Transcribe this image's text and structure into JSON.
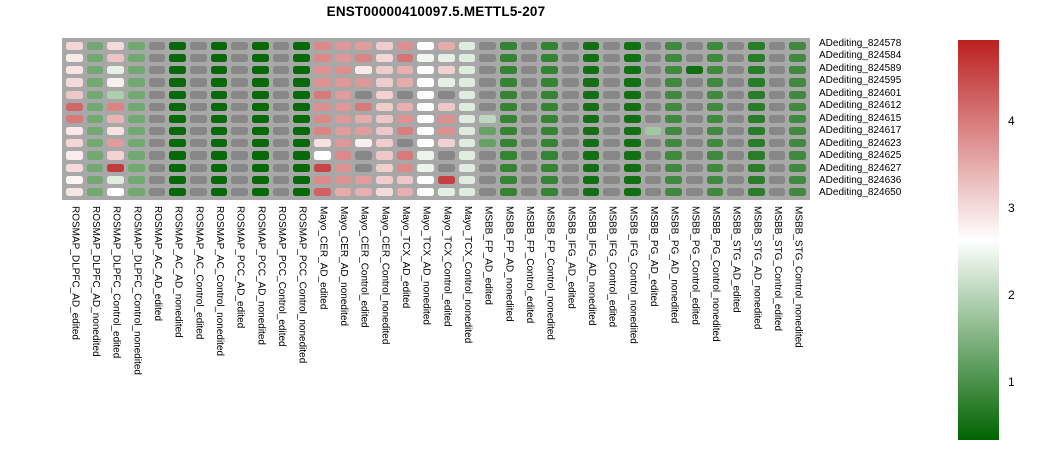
{
  "title": "ENST00000410097.5.METTL5-207",
  "chart_data": {
    "type": "heatmap",
    "rows": [
      "ADediting_824578",
      "ADediting_824584",
      "ADediting_824589",
      "ADediting_824595",
      "ADediting_824601",
      "ADediting_824612",
      "ADediting_824615",
      "ADediting_824617",
      "ADediting_824623",
      "ADediting_824625",
      "ADediting_824627",
      "ADediting_824636",
      "ADediting_824650"
    ],
    "columns": [
      "ROSMAP_DLPFC_AD_edited",
      "ROSMAP_DLPFC_AD_nonedited",
      "ROSMAP_DLPFC_Control_edited",
      "ROSMAP_DLPFC_Control_nonedited",
      "ROSMAP_AC_AD_edited",
      "ROSMAP_AC_AD_nonedited",
      "ROSMAP_AC_Control_edited",
      "ROSMAP_AC_Control_nonedited",
      "ROSMAP_PCC_AD_edited",
      "ROSMAP_PCC_AD_nonedited",
      "ROSMAP_PCC_Control_edited",
      "ROSMAP_PCC_Control_nonedited",
      "Mayo_CER_AD_edited",
      "Mayo_CER_AD_nonedited",
      "Mayo_CER_Control_edited",
      "Mayo_CER_Control_nonedited",
      "Mayo_TCX_AD_edited",
      "Mayo_TCX_AD_nonedited",
      "Mayo_TCX_Control_edited",
      "Mayo_TCX_Control_nonedited",
      "MSBB_FP_AD_edited",
      "MSBB_FP_AD_nonedited",
      "MSBB_FP_Control_edited",
      "MSBB_FP_Control_nonedited",
      "MSBB_IFG_AD_edited",
      "MSBB_IFG_AD_nonedited",
      "MSBB_IFG_Control_edited",
      "MSBB_IFG_Control_nonedited",
      "MSBB_PG_AD_edited",
      "MSBB_PG_AD_nonedited",
      "MSBB_PG_Control_edited",
      "MSBB_PG_Control_nonedited",
      "MSBB_STG_AD_edited",
      "MSBB_STG_AD_nonedited",
      "MSBB_STG_Control_edited",
      "MSBB_STG_Control_nonedited"
    ],
    "values": [
      [
        3.05,
        1.35,
        3.0,
        1.35,
        null,
        0.4,
        null,
        0.4,
        null,
        0.4,
        null,
        0.4,
        3.85,
        3.7,
        3.65,
        3.15,
        3.8,
        2.6,
        3.5,
        2.35,
        null,
        0.8,
        null,
        0.8,
        null,
        0.5,
        null,
        0.5,
        null,
        0.9,
        null,
        0.9,
        null,
        0.7,
        null,
        0.9
      ],
      [
        2.85,
        1.35,
        3.25,
        1.35,
        null,
        0.4,
        null,
        0.4,
        null,
        0.4,
        null,
        0.4,
        3.85,
        3.7,
        3.9,
        3.05,
        4.05,
        2.5,
        2.4,
        2.35,
        null,
        0.8,
        null,
        0.8,
        null,
        0.5,
        null,
        0.5,
        null,
        0.9,
        null,
        0.9,
        null,
        0.7,
        null,
        0.9
      ],
      [
        2.9,
        1.35,
        2.4,
        1.35,
        null,
        0.4,
        null,
        0.4,
        null,
        0.4,
        null,
        0.4,
        3.75,
        3.8,
        2.85,
        3.15,
        3.45,
        2.6,
        3.1,
        2.35,
        null,
        0.8,
        null,
        0.8,
        null,
        0.5,
        null,
        0.5,
        null,
        0.9,
        0.5,
        0.9,
        null,
        0.7,
        null,
        0.9
      ],
      [
        3.0,
        1.35,
        2.8,
        1.35,
        null,
        0.4,
        null,
        0.4,
        null,
        0.4,
        null,
        0.4,
        3.75,
        3.7,
        3.7,
        3.15,
        3.5,
        2.6,
        2.4,
        2.35,
        null,
        0.8,
        null,
        0.8,
        null,
        0.5,
        null,
        0.5,
        null,
        0.9,
        null,
        0.9,
        null,
        0.7,
        null,
        0.9
      ],
      [
        3.2,
        1.35,
        1.9,
        1.35,
        null,
        0.4,
        null,
        0.4,
        null,
        0.4,
        null,
        0.4,
        4.0,
        3.65,
        null,
        3.1,
        null,
        2.6,
        null,
        2.35,
        null,
        0.8,
        null,
        0.8,
        null,
        0.5,
        null,
        0.5,
        null,
        0.9,
        null,
        0.9,
        null,
        0.7,
        null,
        0.9
      ],
      [
        4.2,
        1.35,
        3.9,
        1.35,
        null,
        0.4,
        null,
        0.4,
        null,
        0.4,
        null,
        0.4,
        3.8,
        3.7,
        4.0,
        3.15,
        3.45,
        2.6,
        3.2,
        2.35,
        null,
        0.8,
        null,
        0.8,
        null,
        0.5,
        null,
        0.5,
        null,
        0.9,
        null,
        0.9,
        null,
        0.7,
        null,
        0.9
      ],
      [
        4.0,
        1.35,
        3.4,
        1.35,
        null,
        0.4,
        null,
        0.4,
        null,
        0.4,
        null,
        0.4,
        3.85,
        3.7,
        3.5,
        3.2,
        3.75,
        2.6,
        3.78,
        2.35,
        2.05,
        0.8,
        null,
        0.8,
        null,
        0.5,
        null,
        0.5,
        null,
        0.9,
        null,
        0.9,
        null,
        0.7,
        null,
        0.9
      ],
      [
        2.87,
        1.35,
        2.92,
        1.35,
        null,
        0.4,
        null,
        0.4,
        null,
        0.4,
        null,
        0.4,
        3.9,
        3.65,
        3.65,
        3.2,
        3.95,
        2.6,
        3.78,
        2.35,
        1.25,
        0.8,
        null,
        0.8,
        null,
        0.5,
        null,
        0.5,
        1.8,
        0.9,
        null,
        0.9,
        null,
        0.7,
        null,
        0.9
      ],
      [
        3.05,
        1.35,
        3.65,
        1.35,
        null,
        0.4,
        null,
        0.4,
        null,
        0.4,
        null,
        0.4,
        2.95,
        3.7,
        2.8,
        3.15,
        null,
        2.62,
        3.1,
        2.35,
        1.25,
        0.8,
        null,
        0.8,
        null,
        0.5,
        null,
        0.5,
        null,
        0.9,
        null,
        0.9,
        null,
        0.7,
        null,
        0.9
      ],
      [
        2.83,
        1.35,
        3.1,
        1.35,
        null,
        0.4,
        null,
        0.4,
        null,
        0.4,
        null,
        0.4,
        2.63,
        3.85,
        null,
        3.2,
        4.0,
        2.45,
        null,
        2.35,
        null,
        0.8,
        null,
        0.8,
        null,
        0.5,
        null,
        0.5,
        null,
        0.9,
        null,
        0.9,
        null,
        0.7,
        null,
        0.9
      ],
      [
        3.02,
        1.35,
        4.65,
        1.35,
        null,
        0.4,
        null,
        0.4,
        null,
        0.4,
        null,
        0.4,
        4.55,
        3.75,
        null,
        3.12,
        3.85,
        2.45,
        null,
        2.35,
        null,
        0.8,
        null,
        0.8,
        null,
        0.5,
        null,
        0.5,
        null,
        0.9,
        null,
        0.9,
        null,
        0.7,
        null,
        0.9
      ],
      [
        2.75,
        1.35,
        2.35,
        1.35,
        null,
        0.4,
        null,
        0.4,
        null,
        0.4,
        null,
        0.4,
        3.85,
        3.75,
        3.65,
        3.15,
        3.2,
        2.6,
        4.6,
        2.35,
        null,
        0.8,
        null,
        0.8,
        null,
        0.5,
        null,
        0.5,
        null,
        0.9,
        null,
        0.9,
        null,
        0.7,
        null,
        0.9
      ],
      [
        2.9,
        1.35,
        2.63,
        1.35,
        null,
        0.4,
        null,
        0.4,
        null,
        0.4,
        null,
        0.4,
        4.25,
        3.5,
        3.45,
        3.0,
        3.45,
        2.6,
        2.4,
        2.35,
        null,
        0.8,
        null,
        0.8,
        null,
        0.5,
        null,
        0.5,
        null,
        0.9,
        null,
        0.9,
        null,
        0.7,
        null,
        0.9
      ]
    ],
    "na_color": "#878787",
    "grid_color": "#a8a8a8",
    "colormap": {
      "low": "#006400",
      "mid": "#ffffff",
      "high": "#bc2020",
      "vmin": 0.33,
      "vmid": 2.63,
      "vmax": 4.93
    },
    "colorbar": {
      "ticks": [
        4,
        3,
        2,
        1
      ]
    },
    "legend_position": "right"
  }
}
